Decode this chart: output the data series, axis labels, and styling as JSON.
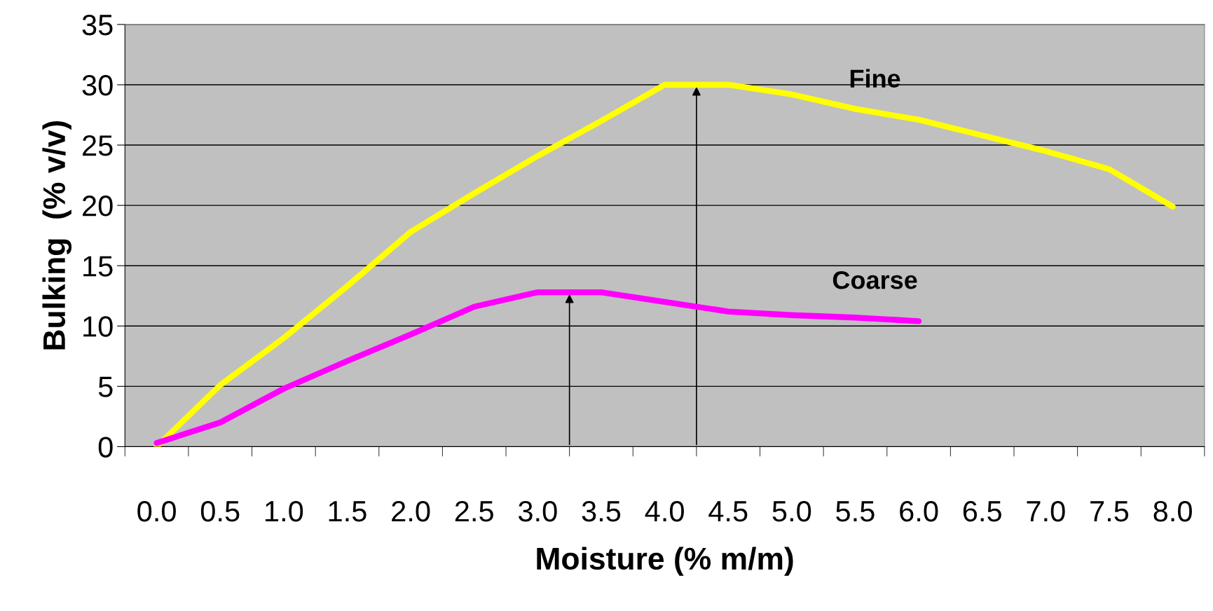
{
  "chart_data": {
    "type": "line",
    "xlabel": "Moisture (% m/m)",
    "ylabel": "Bulking  (% v/v)",
    "categories": [
      "0.0",
      "0.5",
      "1.0",
      "1.5",
      "2.0",
      "2.5",
      "3.0",
      "3.5",
      "4.0",
      "4.5",
      "5.0",
      "5.5",
      "6.0",
      "6.5",
      "7.0",
      "7.5",
      "8.0"
    ],
    "series": [
      {
        "name": "Fine",
        "color": "#ffff00",
        "values": [
          0,
          5.1,
          9.0,
          13.3,
          17.8,
          21.0,
          24.1,
          27.0,
          30.0,
          30.0,
          29.2,
          28.0,
          27.1,
          25.8,
          24.5,
          23.0,
          19.9
        ]
      },
      {
        "name": "Coarse",
        "color": "#ff00ff",
        "values": [
          0.3,
          2.0,
          4.8,
          7.1,
          9.3,
          11.6,
          12.8,
          12.8,
          12.0,
          11.2,
          10.9,
          10.7,
          10.4,
          null,
          null,
          null,
          null
        ]
      }
    ],
    "ylim": [
      0,
      35
    ],
    "yticks": [
      0,
      5,
      10,
      15,
      20,
      25,
      30,
      35
    ],
    "grid": "y",
    "legend": false,
    "marker": "none",
    "line_style": "solid"
  }
}
